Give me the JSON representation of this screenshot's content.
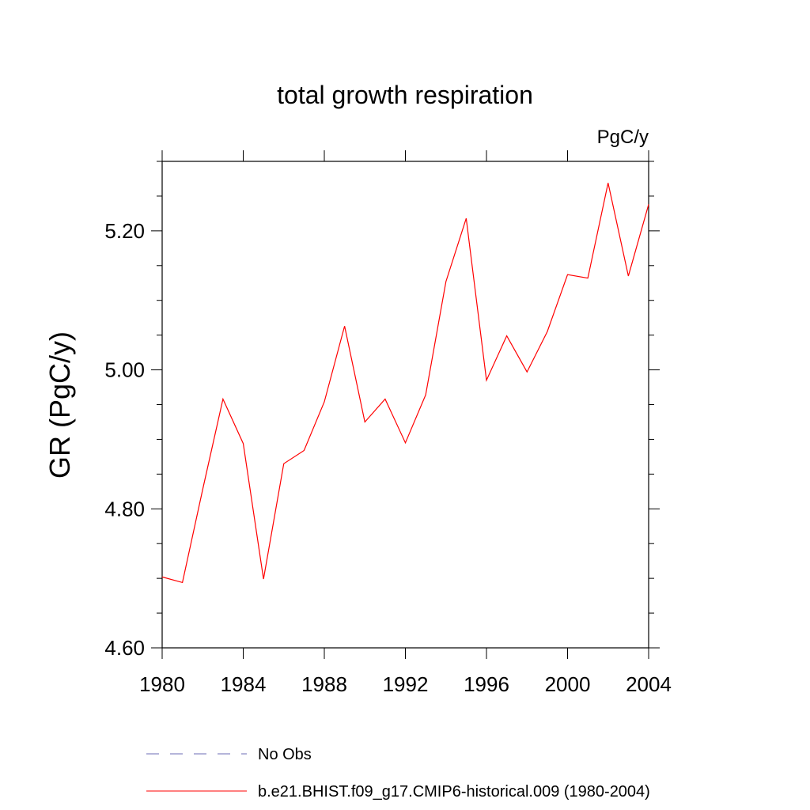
{
  "chart_data": {
    "type": "line",
    "title": "total growth respiration",
    "units": "PgC/y",
    "ylabel": "GR  (PgC/y)",
    "xlabel": "",
    "xlim": [
      1980,
      2004
    ],
    "ylim": [
      4.6,
      5.3
    ],
    "x_ticks": [
      1980,
      1984,
      1988,
      1992,
      1996,
      2000,
      2004
    ],
    "x_tick_labels": [
      "1980",
      "1984",
      "1988",
      "1992",
      "1996",
      "2000",
      "2004"
    ],
    "y_ticks": [
      4.6,
      4.8,
      5.0,
      5.2
    ],
    "y_tick_labels": [
      "4.60",
      "4.80",
      "5.00",
      "5.20"
    ],
    "grid": false,
    "legend_position": "bottom",
    "series": [
      {
        "name": "b.e21.BHIST.f09_g17.CMIP6-historical.009 (1980-2004)",
        "color": "#ff0000",
        "style": "solid",
        "x": [
          1980,
          1981,
          1982,
          1983,
          1984,
          1985,
          1986,
          1987,
          1988,
          1989,
          1990,
          1991,
          1992,
          1993,
          1994,
          1995,
          1996,
          1997,
          1998,
          1999,
          2000,
          2001,
          2002,
          2003,
          2004
        ],
        "values": [
          4.702,
          4.694,
          4.828,
          4.958,
          4.894,
          4.699,
          4.865,
          4.884,
          4.954,
          5.063,
          4.925,
          4.958,
          4.895,
          4.964,
          5.127,
          5.218,
          4.985,
          5.049,
          4.997,
          5.055,
          5.137,
          5.132,
          5.269,
          5.135,
          5.238
        ]
      }
    ],
    "legend": [
      {
        "label": "No Obs",
        "color": "#6b6bb5",
        "style": "dashed"
      },
      {
        "label": "b.e21.BHIST.f09_g17.CMIP6-historical.009 (1980-2004)",
        "color": "#ff0000",
        "style": "solid"
      }
    ]
  }
}
